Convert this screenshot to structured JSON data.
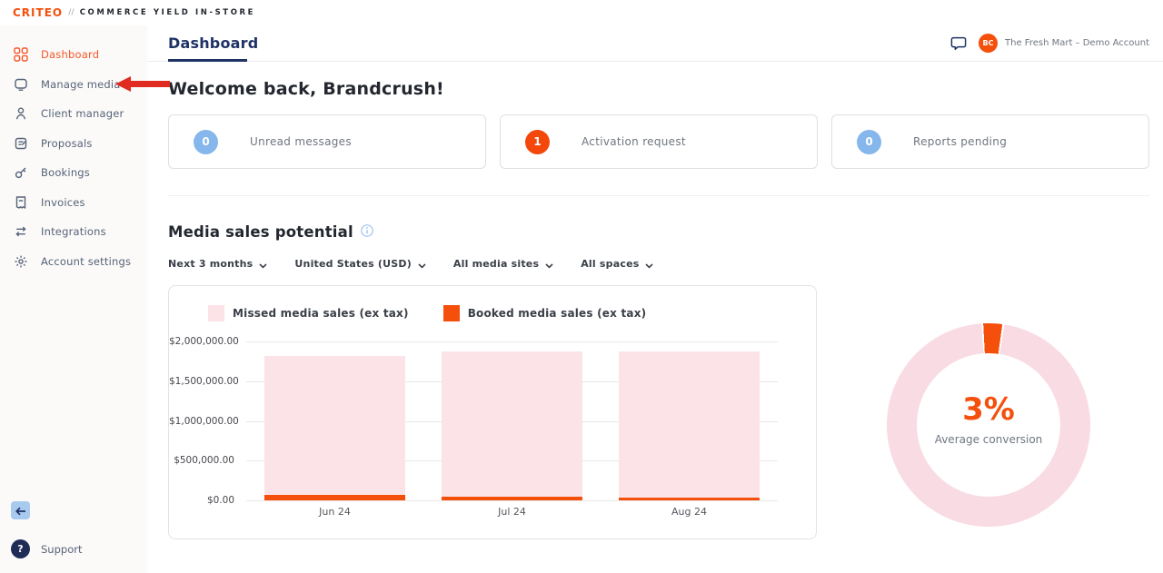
{
  "topbar": {
    "logo": "CRITEO",
    "separator": "//",
    "product": "COMMERCE YIELD IN-STORE"
  },
  "sidebar": {
    "items": [
      {
        "label": "Dashboard",
        "icon": "grid-icon",
        "active": true
      },
      {
        "label": "Manage media",
        "icon": "screen-icon",
        "active": false
      },
      {
        "label": "Client manager",
        "icon": "person-icon",
        "active": false
      },
      {
        "label": "Proposals",
        "icon": "note-icon",
        "active": false
      },
      {
        "label": "Bookings",
        "icon": "key-icon",
        "active": false
      },
      {
        "label": "Invoices",
        "icon": "receipt-icon",
        "active": false
      },
      {
        "label": "Integrations",
        "icon": "swap-arrows-icon",
        "active": false
      },
      {
        "label": "Account settings",
        "icon": "gear-icon",
        "active": false
      }
    ],
    "support_label": "Support"
  },
  "annotation": {
    "type": "left-pointing-arrow",
    "target": "Manage media",
    "color": "#E02B20"
  },
  "header": {
    "title": "Dashboard",
    "account_name": "The Fresh Mart – Demo Account",
    "avatar_initials": "BC"
  },
  "welcome": "Welcome back, Brandcrush!",
  "stat_cards": [
    {
      "count": "0",
      "label": "Unread messages",
      "color": "#85B6EC"
    },
    {
      "count": "1",
      "label": "Activation request",
      "color": "#F4470B"
    },
    {
      "count": "0",
      "label": "Reports pending",
      "color": "#85B6EC"
    }
  ],
  "section": {
    "title": "Media sales potential"
  },
  "filters": [
    {
      "label": "Next 3 months"
    },
    {
      "label": "United States (USD)"
    },
    {
      "label": "All media sites"
    },
    {
      "label": "All spaces"
    }
  ],
  "chart_data": [
    {
      "type": "bar",
      "stacked": true,
      "categories": [
        "Jun 24",
        "Jul 24",
        "Aug 24"
      ],
      "series": [
        {
          "name": "Missed media sales (ex tax)",
          "color": "#FBE3E8",
          "values": [
            1750000,
            1830000,
            1850000
          ],
          "stack_position": "top"
        },
        {
          "name": "Booked media sales (ex tax)",
          "color": "#F4500C",
          "values": [
            70000,
            45000,
            30000
          ],
          "stack_position": "bottom"
        }
      ],
      "ylim": [
        0,
        2000000
      ],
      "yticks": [
        "$2,000,000.00",
        "$1,500,000.00",
        "$1,000,000.00",
        "$500,000.00",
        "$0.00"
      ],
      "grid": true,
      "legend_position": "top"
    },
    {
      "type": "pie",
      "donut": true,
      "slices": [
        {
          "name": "converted",
          "value": 3,
          "color": "#F4500C"
        },
        {
          "name": "remainder",
          "value": 97,
          "color": "#F9DBE3"
        }
      ],
      "center_value": "3%",
      "center_label": "Average conversion"
    }
  ],
  "colors": {
    "brand_orange": "#F4500C",
    "sidebar_active": "#F4582B",
    "navy": "#1E3264",
    "annotation_red": "#E02B20",
    "info_blue": "#9CC3F0"
  }
}
